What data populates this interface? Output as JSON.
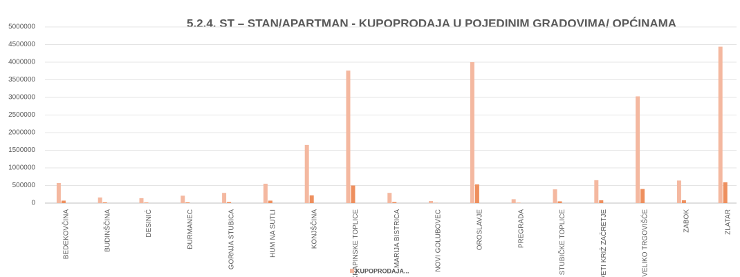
{
  "chart_data": {
    "type": "bar",
    "title": "5.2.4. ST – STAN/APARTMAN - KUPOPRODAJA U POJEDINIM GRADOVIMA/ OPĆINAMA",
    "categories": [
      "BEDEKOVČINA",
      "BUDINŠČINA",
      "DESINIĆ",
      "ĐURMANEC",
      "GORNJA STUBICA",
      "HUM NA SUTLI",
      "KONJŠČINA",
      "KRAPINSKE TOPLICE",
      "MARIJA BISTRICA",
      "NOVI GOLUBOVEC",
      "OROSLAVJE",
      "PREGRADA",
      "STUBIČKE TOPLICE",
      "SVETI KRIŽ ZAČRETJE",
      "VELIKO TRGOVIŠĆE",
      "ZABOK",
      "ZLATAR"
    ],
    "series": [
      {
        "name": "KUPOPRODAJA...",
        "color": "#f4b8a0",
        "values": [
          570000,
          160000,
          140000,
          210000,
          290000,
          550000,
          1650000,
          3760000,
          290000,
          60000,
          4000000,
          110000,
          390000,
          650000,
          3030000,
          640000,
          4440000
        ]
      },
      {
        "color": "#ee8f5e",
        "values": [
          70000,
          20000,
          15000,
          20000,
          30000,
          70000,
          220000,
          500000,
          30000,
          5000,
          530000,
          10000,
          50000,
          80000,
          400000,
          80000,
          590000
        ]
      }
    ],
    "ylim": [
      0,
      5000000
    ],
    "yticks": [
      0,
      500000,
      1000000,
      1500000,
      2000000,
      2500000,
      3000000,
      3500000,
      4000000,
      4500000,
      5000000
    ],
    "grid": true
  }
}
